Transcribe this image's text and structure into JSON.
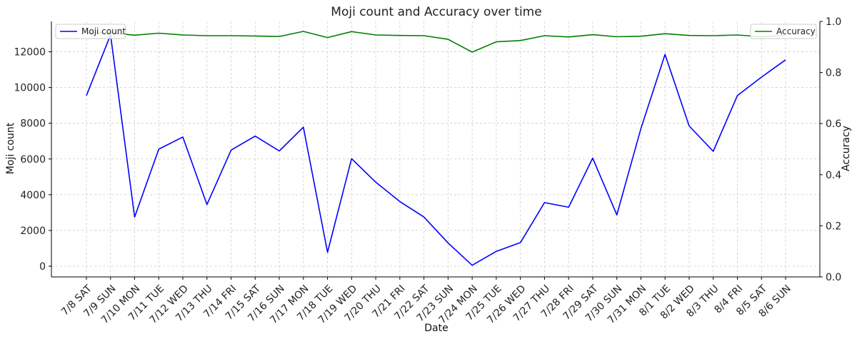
{
  "chart_data": {
    "type": "line",
    "title": "Moji count and Accuracy over time",
    "xlabel": "Date",
    "ylabel": "Moji count",
    "y2label": "Accuracy",
    "categories": [
      "7/8 SAT",
      "7/9 SUN",
      "7/10 MON",
      "7/11 TUE",
      "7/12 WED",
      "7/13 THU",
      "7/14 FRI",
      "7/15 SAT",
      "7/16 SUN",
      "7/17 MON",
      "7/18 TUE",
      "7/19 WED",
      "7/20 THU",
      "7/21 FRI",
      "7/22 SAT",
      "7/23 SUN",
      "7/24 MON",
      "7/25 TUE",
      "7/26 WED",
      "7/27 THU",
      "7/28 FRI",
      "7/29 SAT",
      "7/30 SUN",
      "7/31 MON",
      "8/1 TUE",
      "8/2 WED",
      "8/3 THU",
      "8/4 FRI",
      "8/5 SAT",
      "8/6 SUN"
    ],
    "ylim": [
      -600,
      13700
    ],
    "yticks": [
      0,
      2000,
      4000,
      6000,
      8000,
      10000,
      12000
    ],
    "y2lim": [
      0,
      1.0
    ],
    "y2ticks": [
      "0.0",
      "0.2",
      "0.4",
      "0.6",
      "0.8",
      "1.0"
    ],
    "grid": true,
    "series": [
      {
        "name": "Moji count",
        "axis": "left",
        "color": "#0000ff",
        "legend_position": "top-left",
        "values": [
          9550,
          12950,
          2750,
          6550,
          7230,
          3450,
          6500,
          7280,
          6450,
          7780,
          780,
          6020,
          4700,
          3620,
          2750,
          1300,
          50,
          830,
          1320,
          3560,
          3300,
          6050,
          2870,
          7700,
          11850,
          7850,
          6430,
          9550,
          10580,
          11550
        ]
      },
      {
        "name": "Accuracy",
        "axis": "right",
        "color": "#008000",
        "legend_position": "top-right",
        "values": [
          0.955,
          0.955,
          0.946,
          0.954,
          0.947,
          0.944,
          0.944,
          0.943,
          0.941,
          0.961,
          0.937,
          0.96,
          0.947,
          0.945,
          0.944,
          0.93,
          0.88,
          0.92,
          0.925,
          0.944,
          0.939,
          0.948,
          0.94,
          0.942,
          0.952,
          0.945,
          0.944,
          0.947,
          0.94,
          0.945
        ]
      }
    ]
  }
}
